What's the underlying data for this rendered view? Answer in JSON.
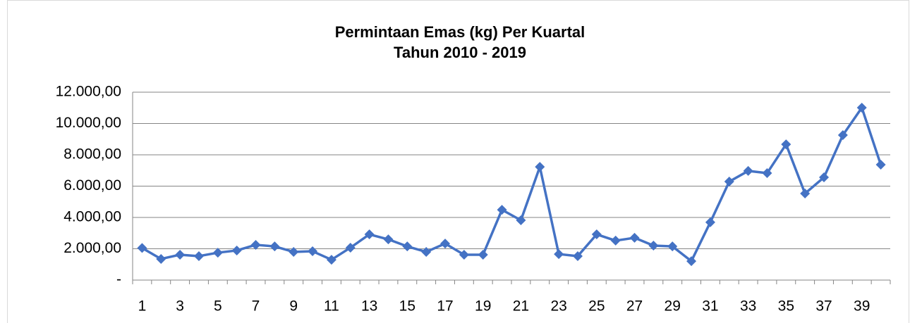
{
  "chart_data": {
    "type": "line",
    "title": "Permintaan Emas (kg) Per Kuartal",
    "subtitle": "Tahun 2010 - 2019",
    "categories": [
      "1",
      null,
      "3",
      null,
      "5",
      null,
      "7",
      null,
      "9",
      null,
      "11",
      null,
      "13",
      null,
      "15",
      null,
      "17",
      null,
      "19",
      null,
      "21",
      null,
      "23",
      null,
      "25",
      null,
      "27",
      null,
      "29",
      null,
      "31",
      null,
      "33",
      null,
      "35",
      null,
      "37",
      null,
      "39",
      null
    ],
    "series": [
      {
        "name": "Permintaan Emas (kg)",
        "color": "#4472c4",
        "values": [
          2050,
          1350,
          1620,
          1530,
          1750,
          1890,
          2250,
          2150,
          1800,
          1840,
          1300,
          2070,
          2920,
          2600,
          2150,
          1800,
          2330,
          1620,
          1620,
          4490,
          3820,
          7230,
          1660,
          1530,
          2920,
          2520,
          2700,
          2200,
          2150,
          1210,
          3690,
          6290,
          6970,
          6830,
          8670,
          5530,
          6560,
          9260,
          11010,
          7370
        ]
      }
    ],
    "ylim": [
      0,
      12000
    ],
    "yticks": [
      {
        "value": 0,
        "label": "-"
      },
      {
        "value": 2000,
        "label": "2.000,00"
      },
      {
        "value": 4000,
        "label": "4.000,00"
      },
      {
        "value": 6000,
        "label": "6.000,00"
      },
      {
        "value": 8000,
        "label": "8.000,00"
      },
      {
        "value": 10000,
        "label": "10.000,00"
      },
      {
        "value": 12000,
        "label": "12.000,00"
      }
    ],
    "grid": true
  }
}
